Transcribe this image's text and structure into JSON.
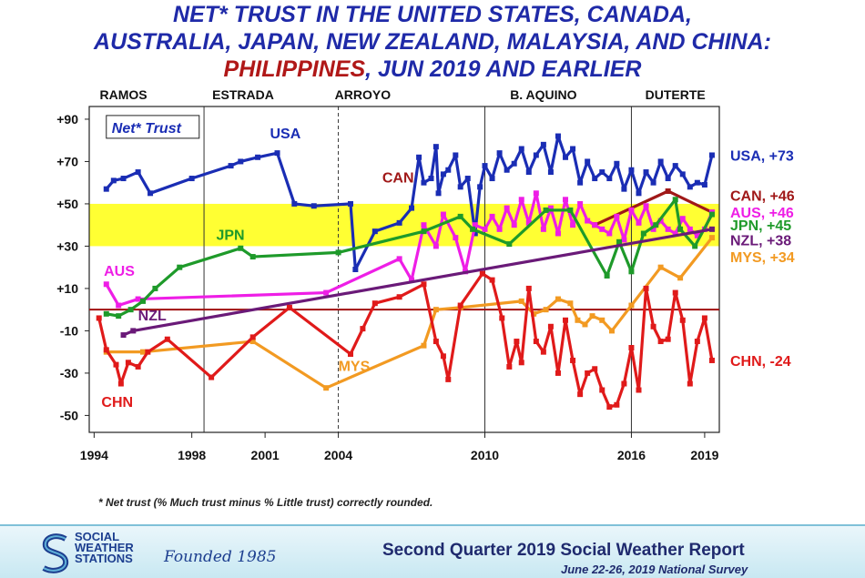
{
  "title": {
    "line1": "NET* TRUST IN THE UNITED STATES, CANADA,",
    "line2": "AUSTRALIA, JAPAN, NEW ZEALAND, MALAYSIA, AND CHINA:",
    "line3_a": "PHILIPPINES",
    "line3_b": ", JUN 2019 AND EARLIER"
  },
  "footnote": "* Net trust (% Much trust minus % Little trust) correctly rounded.",
  "footer": {
    "org_line1": "SOCIAL",
    "org_line2": "WEATHER",
    "org_line3": "STATIONS",
    "founded": "Founded 1985",
    "report": "Second Quarter 2019 Social Weather Report",
    "survey": "June 22-26, 2019 National Survey"
  },
  "chart_data": {
    "type": "line",
    "title": "NET* TRUST IN THE UNITED STATES, CANADA, AUSTRALIA, JAPAN, NEW ZEALAND, MALAYSIA, AND CHINA: PHILIPPINES, JUN 2019 AND EARLIER",
    "legend_box": "Net* Trust",
    "ylim": [
      -58,
      96
    ],
    "xlim": [
      1993.8,
      2019.6
    ],
    "yticks": [
      {
        "value": 90,
        "label": "+90"
      },
      {
        "value": 70,
        "label": "+70"
      },
      {
        "value": 50,
        "label": "+50"
      },
      {
        "value": 30,
        "label": "+30"
      },
      {
        "value": 10,
        "label": "+10"
      },
      {
        "value": -10,
        "label": "-10"
      },
      {
        "value": -30,
        "label": "-30"
      },
      {
        "value": -50,
        "label": "-50"
      }
    ],
    "xticks": [
      {
        "value": 1994,
        "label": "1994"
      },
      {
        "value": 1998,
        "label": "1998"
      },
      {
        "value": 2001,
        "label": "2001"
      },
      {
        "value": 2004,
        "label": "2004"
      },
      {
        "value": 2010,
        "label": "2010"
      },
      {
        "value": 2016,
        "label": "2016"
      },
      {
        "value": 2019,
        "label": "2019"
      }
    ],
    "band": {
      "from": 30,
      "to": 50,
      "color": "#ffff33"
    },
    "zero_line_color": "#a01010",
    "administrations": [
      {
        "label": "RAMOS",
        "x": 1995.2
      },
      {
        "label": "ESTRADA",
        "x": 2000.1
      },
      {
        "label": "ARROYO",
        "x": 2005.0
      },
      {
        "label": "B. AQUINO",
        "x": 2012.4
      },
      {
        "label": "DUTERTE",
        "x": 2017.8
      }
    ],
    "dividers": [
      {
        "x": 1998.5,
        "dashed": false
      },
      {
        "x": 2004.0,
        "dashed": true
      },
      {
        "x": 2010.0,
        "dashed": false
      },
      {
        "x": 2016.0,
        "dashed": false
      }
    ],
    "series": [
      {
        "name": "USA",
        "color": "#1a2db4",
        "label": "USA",
        "label_pos": [
          2001.2,
          81
        ],
        "end_label": "USA, +73",
        "x": [
          1994.5,
          1994.8,
          1995.2,
          1995.8,
          1996.3,
          1998.0,
          1999.6,
          2000.0,
          2000.7,
          2001.5,
          2002.2,
          2003.0,
          2004.5,
          2004.7,
          2005.5,
          2006.5,
          2007.0,
          2007.3,
          2007.5,
          2007.8,
          2008.0,
          2008.1,
          2008.3,
          2008.5,
          2008.8,
          2009.0,
          2009.3,
          2009.6,
          2009.8,
          2010.0,
          2010.3,
          2010.6,
          2010.9,
          2011.2,
          2011.5,
          2011.8,
          2012.1,
          2012.4,
          2012.7,
          2013.0,
          2013.3,
          2013.6,
          2013.9,
          2014.2,
          2014.5,
          2014.8,
          2015.1,
          2015.4,
          2015.7,
          2016.0,
          2016.3,
          2016.6,
          2016.9,
          2017.2,
          2017.5,
          2017.8,
          2018.1,
          2018.4,
          2018.7,
          2019.0,
          2019.3
        ],
        "y": [
          57,
          61,
          62,
          65,
          55,
          62,
          68,
          70,
          72,
          74,
          50,
          49,
          50,
          19,
          37,
          41,
          48,
          72,
          60,
          62,
          77,
          55,
          64,
          66,
          73,
          58,
          62,
          36,
          58,
          68,
          62,
          74,
          66,
          69,
          76,
          65,
          73,
          78,
          65,
          82,
          72,
          76,
          60,
          70,
          62,
          65,
          62,
          69,
          57,
          66,
          55,
          65,
          60,
          70,
          62,
          68,
          64,
          58,
          60,
          59,
          73
        ]
      },
      {
        "name": "CAN",
        "color": "#a01818",
        "label": "CAN",
        "label_pos": [
          2005.8,
          60
        ],
        "end_label": "CAN, +46",
        "x": [
          2014.5,
          2017.5,
          2019.3
        ],
        "y": [
          40,
          56,
          46
        ]
      },
      {
        "name": "AUS",
        "color": "#ee1ee6",
        "label": "AUS",
        "label_pos": [
          1994.4,
          16
        ],
        "end_label": "AUS, +46",
        "x": [
          1994.5,
          1995.0,
          1995.8,
          2003.5,
          2006.5,
          2007.0,
          2007.5,
          2008.0,
          2008.3,
          2008.8,
          2009.2,
          2009.6,
          2010.0,
          2010.3,
          2010.6,
          2010.9,
          2011.2,
          2011.5,
          2011.8,
          2012.1,
          2012.4,
          2012.7,
          2013.0,
          2013.3,
          2013.6,
          2013.9,
          2014.2,
          2014.5,
          2014.8,
          2015.1,
          2015.4,
          2015.7,
          2016.0,
          2016.3,
          2016.6,
          2016.9,
          2017.2,
          2017.5,
          2017.8,
          2018.1,
          2018.4,
          2018.7,
          2019.0,
          2019.3
        ],
        "y": [
          12,
          2,
          5,
          8,
          24,
          14,
          40,
          30,
          45,
          34,
          18,
          40,
          38,
          44,
          38,
          48,
          40,
          52,
          41,
          55,
          38,
          48,
          36,
          52,
          40,
          50,
          42,
          40,
          38,
          36,
          44,
          33,
          47,
          41,
          49,
          38,
          42,
          38,
          36,
          43,
          38,
          35,
          38,
          46
        ]
      },
      {
        "name": "JPN",
        "color": "#1e9a2a",
        "label": "JPN",
        "label_pos": [
          1999.0,
          33
        ],
        "end_label": "JPN, +45",
        "x": [
          1994.5,
          1995.0,
          1995.5,
          1996.0,
          1996.5,
          1997.5,
          2000.0,
          2000.5,
          2004.0,
          2007.5,
          2009.0,
          2009.5,
          2011.0,
          2012.5,
          2013.5,
          2015.0,
          2015.5,
          2016.0,
          2016.5,
          2017.0,
          2017.8,
          2018.0,
          2018.6,
          2019.3
        ],
        "y": [
          -2,
          -3,
          0,
          4,
          10,
          20,
          29,
          25,
          27,
          37,
          44,
          38,
          31,
          47,
          47,
          16,
          32,
          18,
          36,
          40,
          52,
          38,
          30,
          45
        ]
      },
      {
        "name": "NZL",
        "color": "#6a1a78",
        "label": "NZL",
        "label_pos": [
          1995.8,
          -5
        ],
        "end_label": "NZL, +38",
        "x": [
          1995.2,
          1995.6,
          2019.3
        ],
        "y": [
          -12,
          -10,
          38
        ]
      },
      {
        "name": "MYS",
        "color": "#f29a22",
        "label": "MYS",
        "label_pos": [
          2004.0,
          -29
        ],
        "end_label": "MYS, +34",
        "x": [
          1994.5,
          1996.0,
          2000.5,
          2003.5,
          2007.5,
          2008.0,
          2009.0,
          2011.5,
          2012.0,
          2012.5,
          2013.0,
          2013.5,
          2013.8,
          2014.1,
          2014.4,
          2014.8,
          2015.2,
          2016.0,
          2017.2,
          2018.0,
          2019.3
        ],
        "y": [
          -20,
          -20,
          -15,
          -37,
          -17,
          0,
          1,
          4,
          -2,
          0,
          5,
          3,
          -5,
          -7,
          -3,
          -5,
          -10,
          2,
          20,
          15,
          34
        ]
      },
      {
        "name": "CHN",
        "color": "#e01a1a",
        "label": "CHN",
        "label_pos": [
          1994.3,
          -46
        ],
        "end_label": "CHN, -24",
        "x": [
          1994.2,
          1994.5,
          1994.9,
          1995.1,
          1995.4,
          1995.8,
          1996.2,
          1997.0,
          1998.8,
          2000.5,
          2002.0,
          2004.5,
          2005.0,
          2005.5,
          2006.5,
          2007.5,
          2008.0,
          2008.3,
          2008.5,
          2009.0,
          2009.9,
          2010.3,
          2010.7,
          2011.0,
          2011.3,
          2011.5,
          2011.8,
          2012.1,
          2012.4,
          2012.7,
          2013.0,
          2013.3,
          2013.6,
          2013.9,
          2014.2,
          2014.5,
          2014.8,
          2015.1,
          2015.4,
          2015.7,
          2016.0,
          2016.3,
          2016.6,
          2016.9,
          2017.2,
          2017.5,
          2017.8,
          2018.1,
          2018.4,
          2018.7,
          2019.0,
          2019.3
        ],
        "y": [
          -4,
          -19,
          -26,
          -35,
          -25,
          -27,
          -20,
          -14,
          -32,
          -13,
          1,
          -21,
          -9,
          3,
          6,
          12,
          -15,
          -22,
          -33,
          2,
          17,
          14,
          -4,
          -27,
          -15,
          -25,
          10,
          -15,
          -20,
          -8,
          -30,
          -5,
          -24,
          -40,
          -30,
          -28,
          -38,
          -46,
          -45,
          -35,
          -18,
          -38,
          10,
          -8,
          -15,
          -14,
          8,
          -5,
          -35,
          -15,
          -4,
          -24
        ]
      }
    ]
  }
}
